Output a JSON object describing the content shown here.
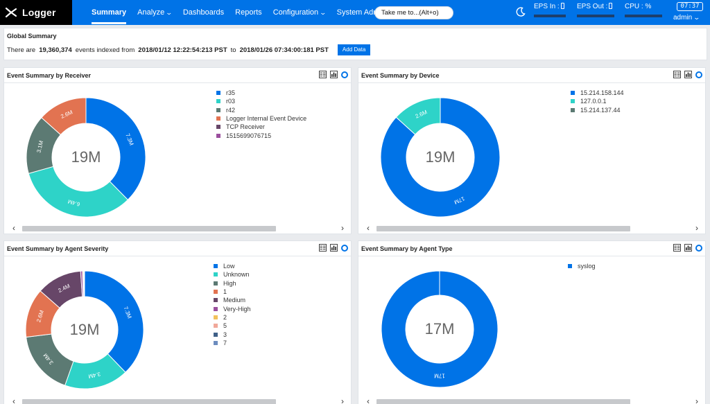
{
  "app": {
    "name": "Logger"
  },
  "nav": {
    "items": [
      {
        "label": "Summary",
        "active": true,
        "dropdown": false
      },
      {
        "label": "Analyze",
        "active": false,
        "dropdown": true
      },
      {
        "label": "Dashboards",
        "active": false,
        "dropdown": false
      },
      {
        "label": "Reports",
        "active": false,
        "dropdown": false
      },
      {
        "label": "Configuration",
        "active": false,
        "dropdown": true
      },
      {
        "label": "System Admin",
        "active": false,
        "dropdown": false
      }
    ],
    "search_value": "Take me to...(Alt+o)"
  },
  "header_stats": {
    "eps_in_label": "EPS In :",
    "eps_out_label": "EPS Out :",
    "cpu_label": "CPU :",
    "cpu_unit": "%",
    "clock": "07:37",
    "user": "admin"
  },
  "global_summary": {
    "title": "Global Summary",
    "prefix": "There are",
    "count": "19,360,374",
    "mid": "events indexed from",
    "from": "2018/01/12 12:22:54:213 PST",
    "to_word": "to",
    "to": "2018/01/26 07:34:00:181 PST",
    "add_button": "Add Data"
  },
  "colors": {
    "brand": "#0073e7",
    "palette": [
      "#0073e7",
      "#2ed3c8",
      "#5c7a73",
      "#e27351",
      "#674668",
      "#9b4f9e",
      "#f2c15b",
      "#f1a89a",
      "#3f6088",
      "#6c8cbe"
    ]
  },
  "chart_data": [
    {
      "id": "receiver",
      "type": "pie",
      "title": "Event Summary by Receiver",
      "center_label": "19M",
      "categories": [
        "r35",
        "r03",
        "r42",
        "Logger Internal Event Device",
        "TCP Receiver",
        "1515699076715"
      ],
      "values": [
        7.3,
        6.4,
        3.1,
        2.6,
        0,
        0
      ],
      "data_labels": [
        "7.3M",
        "6.4M",
        "3.1M",
        "2.6M",
        "",
        ""
      ],
      "colors": [
        "#0073e7",
        "#2ed3c8",
        "#5c7a73",
        "#e27351",
        "#674668",
        "#9b4f9e"
      ],
      "legend_position": "top-right"
    },
    {
      "id": "device",
      "type": "pie",
      "title": "Event Summary by Device",
      "center_label": "19M",
      "categories": [
        "15.214.158.144",
        "127.0.0.1",
        "15.214.137.44"
      ],
      "values": [
        17,
        2.6,
        0
      ],
      "data_labels": [
        "17M",
        "2.6M",
        ""
      ],
      "colors": [
        "#0073e7",
        "#2ed3c8",
        "#5c7a73"
      ],
      "legend_position": "top-right"
    },
    {
      "id": "severity",
      "type": "pie",
      "title": "Event Summary by Agent Severity",
      "center_label": "19M",
      "categories": [
        "Low",
        "Unknown",
        "High",
        "1",
        "Medium",
        "Very-High",
        "2",
        "5",
        "3",
        "7"
      ],
      "values": [
        7.3,
        3.4,
        3.4,
        2.6,
        2.4,
        0.1,
        0.05,
        0.03,
        0.02,
        0.01
      ],
      "data_labels": [
        "7.3M",
        "3.4M",
        "3.4M",
        "2.6M",
        "2.4M",
        "",
        "",
        "",
        "",
        ""
      ],
      "colors": [
        "#0073e7",
        "#2ed3c8",
        "#5c7a73",
        "#e27351",
        "#674668",
        "#9b4f9e",
        "#f2c15b",
        "#f1a89a",
        "#3f6088",
        "#6c8cbe"
      ],
      "legend_position": "top-right"
    },
    {
      "id": "agent-type",
      "type": "pie",
      "title": "Event Summary by Agent Type",
      "center_label": "17M",
      "categories": [
        "syslog"
      ],
      "values": [
        17
      ],
      "data_labels": [
        "17M"
      ],
      "colors": [
        "#0073e7"
      ],
      "legend_position": "top-right"
    }
  ]
}
